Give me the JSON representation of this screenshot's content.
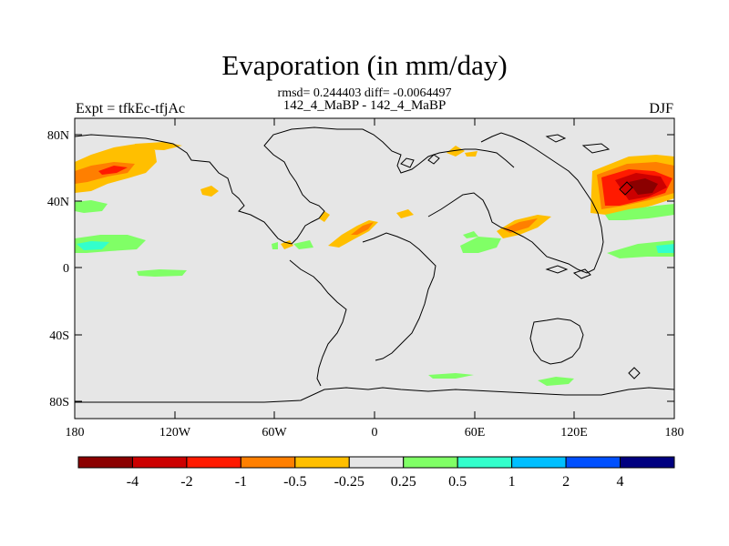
{
  "title": "Evaporation (in mm/day)",
  "stats": "rmsd= 0.244403 diff= -0.0064497",
  "subtitle": "142_4_MaBP - 142_4_MaBP",
  "left_label": "Expt = tfkEc-tfjAc",
  "right_label": "DJF",
  "lat_ticks": [
    "80N",
    "40N",
    "0",
    "40S",
    "80S"
  ],
  "lon_ticks": [
    "180",
    "120W",
    "60W",
    "0",
    "60E",
    "120E",
    "180"
  ],
  "colorbar": {
    "colors": [
      "#8b0000",
      "#cc0000",
      "#ff1a00",
      "#ff7f00",
      "#ffbf00",
      "#e6e6e6",
      "#80ff66",
      "#33ffcc",
      "#00bfff",
      "#0050ff",
      "#000080"
    ],
    "labels": [
      "-4",
      "-2",
      "-1",
      "-0.5",
      "-0.25",
      "0.25",
      "0.5",
      "1",
      "2",
      "4"
    ]
  }
}
